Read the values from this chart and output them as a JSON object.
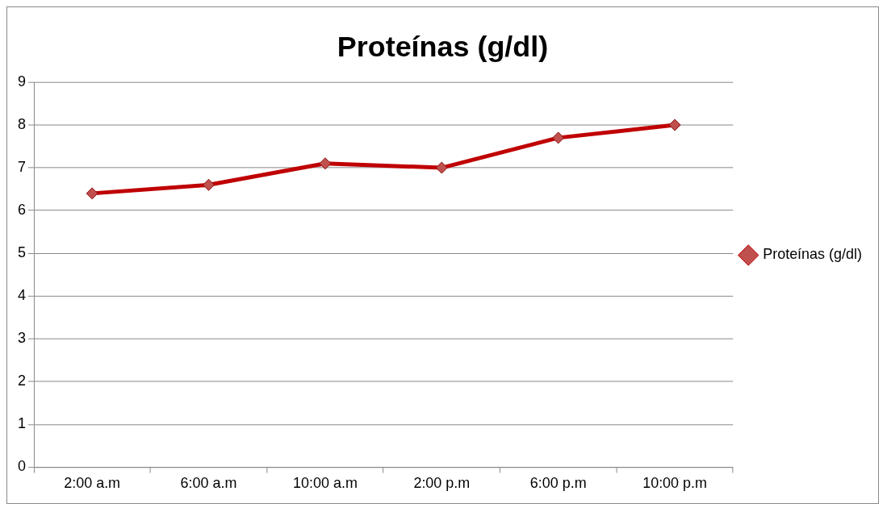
{
  "chart_data": {
    "type": "line",
    "title": "Proteínas (g/dl)",
    "categories": [
      "2:00 a.m",
      "6:00 a.m",
      "10:00 a.m",
      "2:00 p.m",
      "6:00 p.m",
      "10:00 p.m"
    ],
    "series": [
      {
        "name": "Proteínas (g/dl)",
        "color": "#c00000",
        "values": [
          6.4,
          6.6,
          7.1,
          7.0,
          7.7,
          8.0
        ]
      }
    ],
    "ylim": [
      0,
      9
    ],
    "yticks": [
      0,
      1,
      2,
      3,
      4,
      5,
      6,
      7,
      8,
      9
    ],
    "grid": "y",
    "legend": "right",
    "marker": "diamond",
    "line_style": "solid"
  }
}
